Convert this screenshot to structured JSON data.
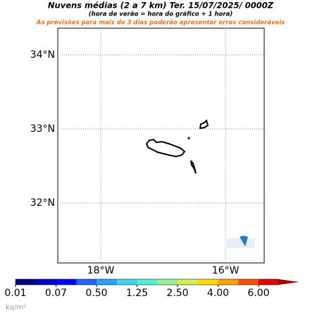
{
  "chart_data": {
    "type": "map",
    "title": "Nuvens médias (2 a 7 km)  Ter. 15/07/2025/ 0000Z",
    "subtitle": "(hora de verão = hora do gráfico + 1 hora)",
    "annotation": "As previsões para mais de 3 dias poderão apresentar erros consideráveis",
    "xlim": [
      -18.69,
      -15.38
    ],
    "ylim": [
      31.19,
      34.36
    ],
    "xticks": [
      {
        "value": -18,
        "label": "18°W"
      },
      {
        "value": -16,
        "label": "16°W"
      }
    ],
    "yticks": [
      {
        "value": 34,
        "label": "34°N"
      },
      {
        "value": 33,
        "label": "33°N"
      },
      {
        "value": 32,
        "label": "32°N"
      }
    ],
    "grid": true,
    "colorbar": {
      "colors": [
        "#000080",
        "#0000cd",
        "#0000ff",
        "#1e64ff",
        "#28a0ff",
        "#3cd2f0",
        "#50f0d2",
        "#96f096",
        "#d2f050",
        "#ffdc00",
        "#ffa000",
        "#ff5000",
        "#e60000",
        "#a00000"
      ],
      "ticks": [
        0.01,
        0.07,
        {
          "value": 0.5,
          "label": "0.50"
        },
        1.25,
        {
          "value": 2.5,
          "label": "2.50"
        },
        {
          "value": 4,
          "label": "4.00"
        },
        {
          "value": 6,
          "label": "6.00"
        }
      ],
      "unit": "kg/m²"
    }
  }
}
